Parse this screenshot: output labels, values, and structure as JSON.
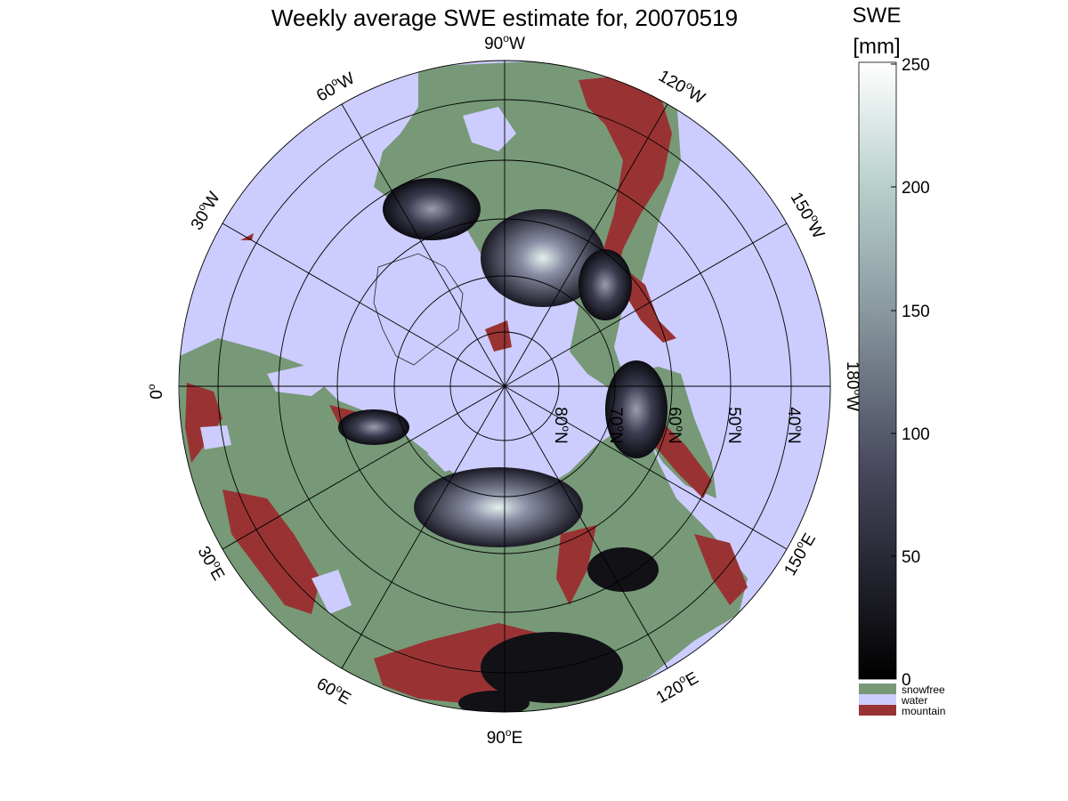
{
  "title": "Weekly average SWE estimate for, 20070519",
  "colorbar": {
    "label_line1": "SWE",
    "label_line2": "[mm]",
    "ticks": [
      "250",
      "200",
      "150",
      "100",
      "50",
      "0"
    ],
    "min": 0,
    "max": 250,
    "colors": {
      "low": "#000000",
      "mid": "#5c5c78",
      "high": "#ffffff"
    }
  },
  "legend": [
    {
      "label": "snowfree",
      "color": "#779977"
    },
    {
      "label": "water",
      "color": "#ccccff"
    },
    {
      "label": "mountain",
      "color": "#993333"
    }
  ],
  "longitude_labels": [
    {
      "deg": "90",
      "dir": "W"
    },
    {
      "deg": "120",
      "dir": "W"
    },
    {
      "deg": "150",
      "dir": "W"
    },
    {
      "deg": "180",
      "dir": "W"
    },
    {
      "deg": "150",
      "dir": "E"
    },
    {
      "deg": "120",
      "dir": "E"
    },
    {
      "deg": "90",
      "dir": "E"
    },
    {
      "deg": "60",
      "dir": "E"
    },
    {
      "deg": "30",
      "dir": "E"
    },
    {
      "deg": "0",
      "dir": ""
    },
    {
      "deg": "30",
      "dir": "W"
    },
    {
      "deg": "60",
      "dir": "W"
    }
  ],
  "latitude_labels": [
    {
      "deg": "80",
      "dir": "N"
    },
    {
      "deg": "70",
      "dir": "N"
    },
    {
      "deg": "60",
      "dir": "N"
    },
    {
      "deg": "50",
      "dir": "N"
    },
    {
      "deg": "40",
      "dir": "N"
    }
  ],
  "map_colors": {
    "water": "#ccccff",
    "land": "#779977",
    "mountain": "#993333",
    "snow_dark": "#101018",
    "snow_mid": "#55556e",
    "snow_bright": "#e8f2f0"
  }
}
